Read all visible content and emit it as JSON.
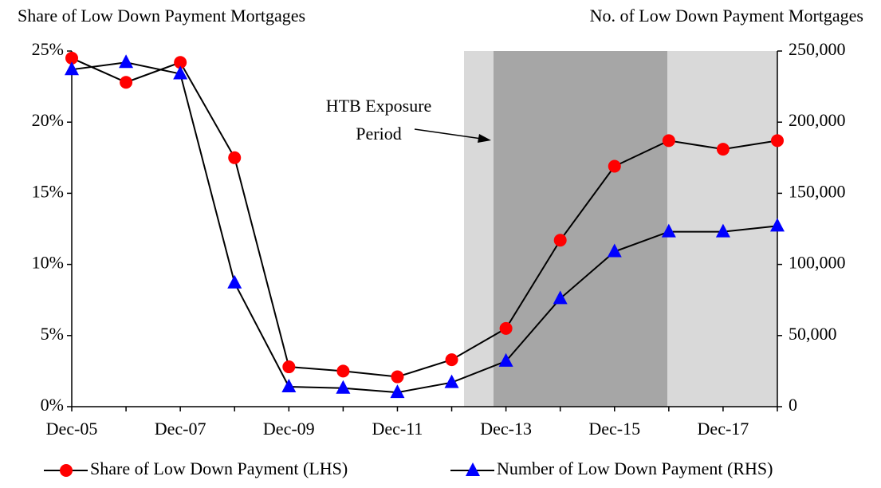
{
  "chart_data": {
    "type": "line",
    "title_left": "Share of Low Down Payment Mortgages",
    "title_right": "No. of Low Down Payment Mortgages",
    "annotation": [
      "HTB Exposure",
      "Period"
    ],
    "categories": [
      "Dec-05",
      null,
      "Dec-07",
      null,
      "Dec-09",
      null,
      "Dec-11",
      null,
      "Dec-13",
      null,
      "Dec-15",
      null,
      "Dec-17",
      null
    ],
    "series": [
      {
        "name": "Share of Low Down Payment (LHS)",
        "color": "#ff0000",
        "marker": "circle",
        "axis": "y",
        "values": [
          24.5,
          22.8,
          24.2,
          17.5,
          2.8,
          2.5,
          2.1,
          3.3,
          5.5,
          11.7,
          16.9,
          18.7,
          18.1,
          18.7
        ]
      },
      {
        "name": "Number of Low Down Payment (RHS)",
        "color": "#0000ff",
        "marker": "triangle",
        "axis": "y2",
        "values": [
          237000,
          242000,
          234000,
          87000,
          14000,
          13000,
          10000,
          17000,
          32000,
          76000,
          109000,
          123000,
          123000,
          127000
        ]
      }
    ],
    "line_color": "#000000",
    "ylim": [
      0,
      25
    ],
    "yticks": [
      {
        "value": 0,
        "label": "0%"
      },
      {
        "value": 5,
        "label": "5%"
      },
      {
        "value": 10,
        "label": "10%"
      },
      {
        "value": 15,
        "label": "15%"
      },
      {
        "value": 20,
        "label": "20%"
      },
      {
        "value": 25,
        "label": "25%"
      }
    ],
    "y2lim": [
      0,
      250000
    ],
    "y2ticks": [
      0,
      {
        "value": 50000,
        "label": "50,000"
      },
      {
        "value": 100000,
        "label": "100,000"
      },
      {
        "value": 150000,
        "label": "150,000"
      },
      {
        "value": 200000,
        "label": "200,000"
      },
      {
        "value": 250000,
        "label": "250,000"
      }
    ],
    "grid": false
  }
}
